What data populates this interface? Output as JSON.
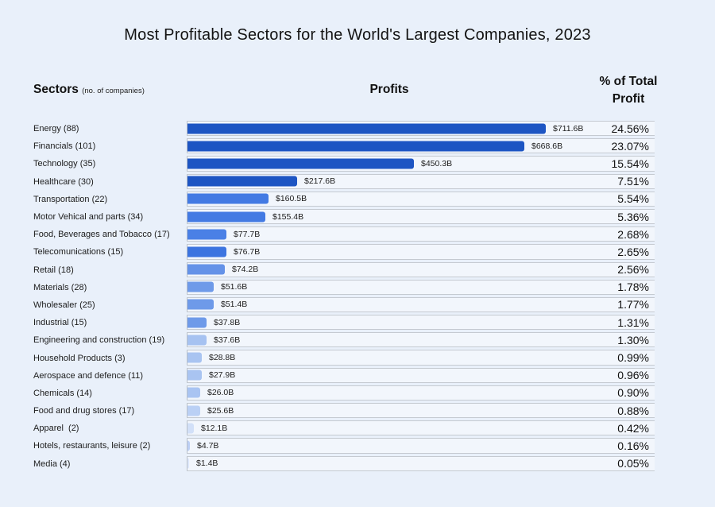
{
  "title": "Most Profitable Sectors for the World's Largest Companies, 2023",
  "headers": {
    "sectors": "Sectors",
    "sectors_note": "(no. of companies)",
    "profits": "Profits",
    "pct_line1": "% of Total",
    "pct_line2": "Profit"
  },
  "colors": {
    "page_bg": "#e9f0fa",
    "band_bg": "#f2f6fc",
    "band_border": "#c5cad1",
    "bar_darkest": "#1d55c3",
    "bar_lightest": "#dde7fb",
    "text": "#1c1c1c"
  },
  "chart_data": {
    "type": "bar",
    "orientation": "horizontal",
    "title": "Most Profitable Sectors for the World's Largest Companies, 2023",
    "columns": [
      "Sectors (no. of companies)",
      "Profits",
      "% of Total Profit"
    ],
    "xlabel": "Profits",
    "ylabel": "Sectors",
    "xlim": [
      0,
      930
    ],
    "grid": "row-bands",
    "legend": "none",
    "categories": [
      "Energy (88)",
      "Financials (101)",
      "Technology (35)",
      "Healthcare (30)",
      "Transportation (22)",
      "Motor Vehical and parts (34)",
      "Food, Beverages and Tobacco (17)",
      "Telecomunications (15)",
      "Retail (18)",
      "Materials (28)",
      "Wholesaler (25)",
      "Industrial (15)",
      "Engineering and construction (19)",
      "Household Products (3)",
      "Aerospace and defence (11)",
      "Chemicals (14)",
      "Food and drug stores (17)",
      "Apparel  (2)",
      "Hotels, restaurants, leisure (2)",
      "Media (4)"
    ],
    "series": [
      {
        "name": "Profit ($B)",
        "values": [
          711.6,
          668.6,
          450.3,
          217.6,
          160.5,
          155.4,
          77.7,
          76.7,
          74.2,
          51.6,
          51.4,
          37.8,
          37.6,
          28.8,
          27.9,
          26.0,
          25.6,
          12.1,
          4.7,
          1.4
        ]
      }
    ],
    "value_labels": [
      "$711.6B",
      "$668.6B",
      "$450.3B",
      "$217.6B",
      "$160.5B",
      "$155.4B",
      "$77.7B",
      "$76.7B",
      "$74.2B",
      "$51.6B",
      "$51.4B",
      "$37.8B",
      "$37.6B",
      "$28.8B",
      "$27.9B",
      "$26.0B",
      "$25.6B",
      "$12.1B",
      "$4.7B",
      "$1.4B"
    ],
    "percent_labels": [
      "24.56%",
      "23.07%",
      "15.54%",
      "7.51%",
      "5.54%",
      "5.36%",
      "2.68%",
      "2.65%",
      "2.56%",
      "1.78%",
      "1.77%",
      "1.31%",
      "1.30%",
      "0.99%",
      "0.96%",
      "0.90%",
      "0.88%",
      "0.42%",
      "0.16%",
      "0.05%"
    ],
    "bar_colors": [
      "#1d55c3",
      "#1d55c3",
      "#1d55c3",
      "#1d55c3",
      "#437ae3",
      "#437ae3",
      "#4a80e6",
      "#3c74e0",
      "#6492e8",
      "#6e9ae9",
      "#6e9ae9",
      "#6e9ae9",
      "#a6c2f1",
      "#a9c4f1",
      "#a9c4f1",
      "#a9c4f2",
      "#bad0f5",
      "#d2e0f8",
      "#bccff5",
      "#dde7fb"
    ]
  }
}
